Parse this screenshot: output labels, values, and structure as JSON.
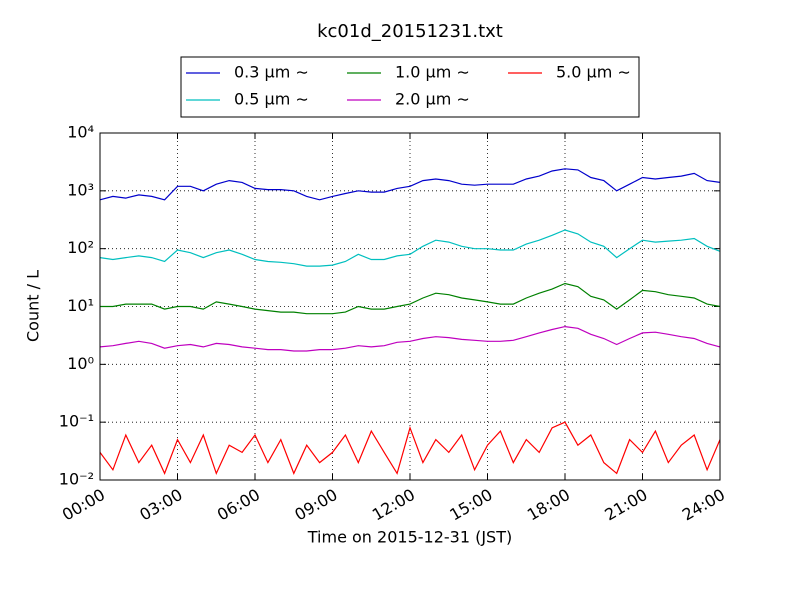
{
  "chart_data": {
    "type": "line",
    "title": "kc01d_20151231.txt",
    "x_label": "Time on 2015-12-31 (JST)",
    "y_label": "Count / L",
    "log_y": true,
    "grid": true,
    "legend": "upper center",
    "xlim": [
      "00:00",
      "24:00"
    ],
    "xticks": [
      "00:00",
      "03:00",
      "06:00",
      "09:00",
      "12:00",
      "15:00",
      "18:00",
      "21:00",
      "24:00"
    ],
    "ylim": [
      0.01,
      10000
    ],
    "yticks": [
      {
        "value": 10000,
        "label": "10⁴"
      },
      {
        "value": 1000,
        "label": "10³"
      },
      {
        "value": 100,
        "label": "10²"
      },
      {
        "value": 10,
        "label": "10¹"
      },
      {
        "value": 1,
        "label": "10⁰"
      },
      {
        "value": 0.1,
        "label": "10⁻¹"
      },
      {
        "value": 0.01,
        "label": "10⁻²"
      }
    ],
    "x": [
      "00:00",
      "00:30",
      "01:00",
      "01:30",
      "02:00",
      "02:30",
      "03:00",
      "03:30",
      "04:00",
      "04:30",
      "05:00",
      "05:30",
      "06:00",
      "06:30",
      "07:00",
      "07:30",
      "08:00",
      "08:30",
      "09:00",
      "09:30",
      "10:00",
      "10:30",
      "11:00",
      "11:30",
      "12:00",
      "12:30",
      "13:00",
      "13:30",
      "14:00",
      "14:30",
      "15:00",
      "15:30",
      "16:00",
      "16:30",
      "17:00",
      "17:30",
      "18:00",
      "18:30",
      "19:00",
      "19:30",
      "20:00",
      "20:30",
      "21:00",
      "21:30",
      "22:00",
      "22:30",
      "23:00",
      "23:30",
      "24:00"
    ],
    "series": [
      {
        "name": "0.3 μm ∼",
        "color": "#0000cc",
        "values": [
          700,
          800,
          750,
          850,
          800,
          700,
          1200,
          1200,
          1000,
          1300,
          1500,
          1400,
          1100,
          1050,
          1050,
          1000,
          800,
          700,
          800,
          900,
          1000,
          950,
          950,
          1100,
          1200,
          1500,
          1600,
          1500,
          1300,
          1250,
          1300,
          1300,
          1300,
          1600,
          1800,
          2200,
          2400,
          2300,
          1700,
          1500,
          1000,
          1300,
          1700,
          1600,
          1700,
          1800,
          2000,
          1500,
          1400
        ]
      },
      {
        "name": "0.5 μm ∼",
        "color": "#00bfbf",
        "values": [
          70,
          65,
          70,
          75,
          70,
          60,
          95,
          85,
          70,
          85,
          95,
          80,
          65,
          60,
          58,
          55,
          50,
          50,
          52,
          60,
          80,
          65,
          65,
          75,
          80,
          110,
          140,
          130,
          110,
          100,
          100,
          95,
          95,
          120,
          140,
          170,
          210,
          180,
          130,
          110,
          70,
          100,
          140,
          130,
          135,
          140,
          150,
          110,
          90
        ]
      },
      {
        "name": "1.0 μm ∼",
        "color": "#008000",
        "values": [
          10,
          10,
          11,
          11,
          11,
          9,
          10,
          10,
          9,
          12,
          11,
          10,
          9,
          8.5,
          8,
          8,
          7.5,
          7.5,
          7.5,
          8,
          10,
          9,
          9,
          10,
          11,
          14,
          17,
          16,
          14,
          13,
          12,
          11,
          11,
          14,
          17,
          20,
          25,
          22,
          15,
          13,
          9,
          13,
          19,
          18,
          16,
          15,
          14,
          11,
          10
        ]
      },
      {
        "name": "2.0 μm ∼",
        "color": "#bf00bf",
        "values": [
          2,
          2.1,
          2.3,
          2.5,
          2.3,
          1.9,
          2.1,
          2.2,
          2.0,
          2.3,
          2.2,
          2.0,
          1.9,
          1.8,
          1.8,
          1.7,
          1.7,
          1.8,
          1.8,
          1.9,
          2.1,
          2.0,
          2.1,
          2.4,
          2.5,
          2.8,
          3.0,
          2.9,
          2.7,
          2.6,
          2.5,
          2.5,
          2.6,
          3.0,
          3.5,
          4.0,
          4.5,
          4.2,
          3.3,
          2.8,
          2.2,
          2.8,
          3.5,
          3.6,
          3.3,
          3.0,
          2.8,
          2.3,
          2.0
        ]
      },
      {
        "name": "5.0 μm ∼",
        "color": "#ff0000",
        "values": [
          0.03,
          0.015,
          0.06,
          0.02,
          0.04,
          0.013,
          0.05,
          0.02,
          0.06,
          0.013,
          0.04,
          0.03,
          0.06,
          0.02,
          0.05,
          0.013,
          0.04,
          0.02,
          0.03,
          0.06,
          0.02,
          0.07,
          0.03,
          0.013,
          0.08,
          0.02,
          0.05,
          0.03,
          0.06,
          0.015,
          0.04,
          0.07,
          0.02,
          0.05,
          0.03,
          0.08,
          0.1,
          0.04,
          0.06,
          0.02,
          0.013,
          0.05,
          0.03,
          0.07,
          0.02,
          0.04,
          0.06,
          0.015,
          0.05
        ]
      }
    ]
  }
}
